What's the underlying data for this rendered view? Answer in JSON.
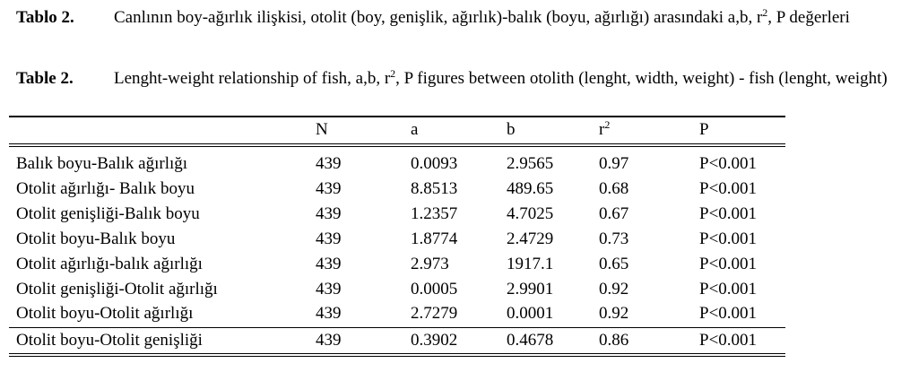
{
  "captions": [
    {
      "label": "Tablo 2.",
      "text": [
        "Canlının boy-ağırlık ilişkisi, otolit (boy, genişlik, ağırlık)-balık (boyu, ağırlığı) arasındaki a,b, r",
        "2",
        ", P değerleri"
      ]
    },
    {
      "label": "Table 2.",
      "text": [
        "Lenght-weight relationship of fish, a,b, r",
        "2",
        ", P figures between otolith (lenght, width, weight) - fish (lenght, weight)"
      ]
    }
  ],
  "table": {
    "header": [
      "",
      "N",
      "a",
      "b",
      {
        "base": "r",
        "sup": "2"
      },
      "P"
    ],
    "rows": [
      [
        "Balık boyu-Balık ağırlığı",
        "439",
        "0.0093",
        "2.9565",
        "0.97",
        "P<0.001"
      ],
      [
        "Otolit ağırlığı- Balık boyu",
        "439",
        "8.8513",
        "489.65",
        "0.68",
        "P<0.001"
      ],
      [
        "Otolit genişliği-Balık boyu",
        "439",
        "1.2357",
        "4.7025",
        "0.67",
        "P<0.001"
      ],
      [
        "Otolit boyu-Balık boyu",
        "439",
        "1.8774",
        "2.4729",
        "0.73",
        "P<0.001"
      ],
      [
        "Otolit ağırlığı-balık ağırlığı",
        "439",
        "2.973",
        "1917.1",
        "0.65",
        "P<0.001"
      ],
      [
        "Otolit genişliği-Otolit ağırlığı",
        "439",
        "0.0005",
        "2.9901",
        "0.92",
        "P<0.001"
      ],
      [
        "Otolit boyu-Otolit ağırlığı",
        "439",
        "2.7279",
        "0.0001",
        "0.92",
        "P<0.001"
      ],
      [
        "Otolit boyu-Otolit genişliği",
        "439",
        "0.3902",
        "0.4678",
        "0.86",
        "P<0.001"
      ]
    ]
  }
}
